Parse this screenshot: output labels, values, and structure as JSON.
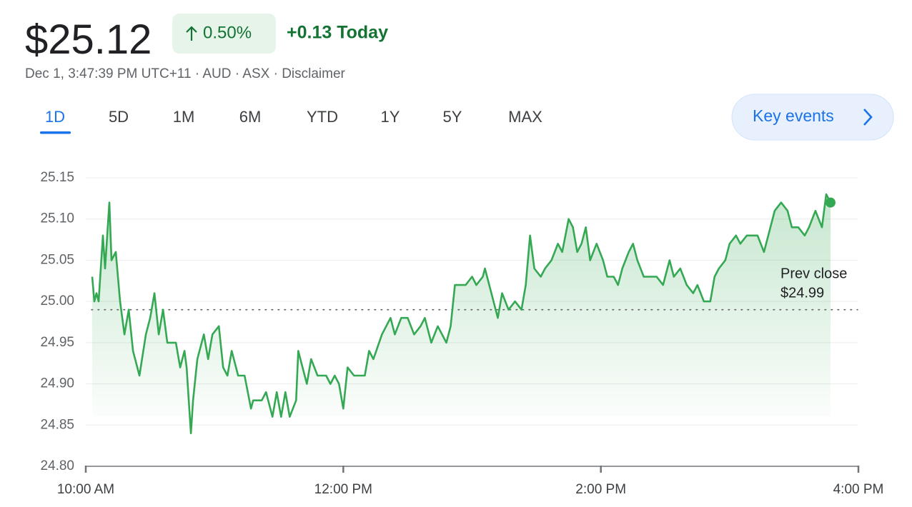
{
  "header": {
    "price": "$25.12",
    "change_percent": "0.50%",
    "change_today": "+0.13 Today",
    "subtitle": "Dec 1, 3:47:39 PM UTC+11 · AUD · ASX · Disclaimer"
  },
  "tabs": [
    "1D",
    "5D",
    "1M",
    "6M",
    "YTD",
    "1Y",
    "5Y",
    "MAX"
  ],
  "key_events": "Key events",
  "chart_data": {
    "type": "line",
    "color": "#34a853",
    "x": [
      603,
      604,
      605,
      606,
      608,
      609,
      611,
      612,
      614,
      616,
      618,
      620,
      622,
      625,
      628,
      630,
      632,
      634,
      636,
      638,
      642,
      644,
      646,
      647,
      649,
      650,
      652,
      655,
      657,
      659,
      662,
      664,
      666,
      668,
      671,
      674,
      677,
      678,
      682,
      684,
      687,
      689,
      691,
      693,
      695,
      698,
      699,
      700,
      703,
      705,
      708,
      712,
      714,
      716,
      718,
      720,
      722,
      725,
      730,
      732,
      734,
      738,
      742,
      744,
      747,
      750,
      753,
      756,
      758,
      761,
      764,
      768,
      770,
      772,
      775,
      777,
      780,
      782,
      785,
      786,
      789,
      792,
      794,
      797,
      800,
      803,
      805,
      807,
      809,
      812,
      814,
      817,
      820,
      822,
      825,
      827,
      829,
      831,
      833,
      835,
      838,
      841,
      843,
      846,
      848,
      850,
      853,
      855,
      857,
      860,
      863,
      866,
      869,
      872,
      874,
      877,
      880,
      883,
      885,
      888,
      891,
      893,
      895,
      898,
      900,
      903,
      905,
      908,
      911,
      913,
      916,
      919,
      921,
      924,
      927,
      929,
      932,
      935,
      937,
      940,
      943,
      945,
      947
    ],
    "values": [
      25.03,
      25.0,
      25.01,
      25.0,
      25.08,
      25.04,
      25.12,
      25.05,
      25.06,
      25.0,
      24.96,
      24.99,
      24.94,
      24.91,
      24.96,
      24.98,
      25.01,
      24.96,
      24.99,
      24.95,
      24.95,
      24.92,
      24.94,
      24.92,
      24.84,
      24.88,
      24.93,
      24.96,
      24.93,
      24.96,
      24.97,
      24.92,
      24.91,
      24.94,
      24.91,
      24.91,
      24.87,
      24.88,
      24.88,
      24.89,
      24.86,
      24.89,
      24.86,
      24.89,
      24.86,
      24.88,
      24.94,
      24.93,
      24.9,
      24.93,
      24.91,
      24.91,
      24.9,
      24.91,
      24.9,
      24.87,
      24.92,
      24.91,
      24.91,
      24.94,
      24.93,
      24.96,
      24.98,
      24.96,
      24.98,
      24.98,
      24.96,
      24.97,
      24.98,
      24.95,
      24.97,
      24.95,
      24.97,
      25.02,
      25.02,
      25.02,
      25.03,
      25.02,
      25.03,
      25.04,
      25.01,
      24.98,
      25.01,
      24.99,
      25.0,
      24.99,
      25.02,
      25.08,
      25.04,
      25.03,
      25.04,
      25.05,
      25.07,
      25.06,
      25.1,
      25.09,
      25.06,
      25.07,
      25.09,
      25.05,
      25.07,
      25.05,
      25.03,
      25.03,
      25.02,
      25.04,
      25.06,
      25.07,
      25.05,
      25.03,
      25.03,
      25.03,
      25.02,
      25.05,
      25.03,
      25.04,
      25.02,
      25.01,
      25.02,
      25.0,
      25.0,
      25.03,
      25.04,
      25.05,
      25.07,
      25.08,
      25.07,
      25.08,
      25.08,
      25.08,
      25.06,
      25.09,
      25.11,
      25.12,
      25.11,
      25.09,
      25.09,
      25.08,
      25.09,
      25.11,
      25.09,
      25.13,
      25.12
    ],
    "xlim": [
      600,
      960
    ],
    "xticks": [
      {
        "value": 600,
        "label": "10:00 AM"
      },
      {
        "value": 720,
        "label": "12:00 PM"
      },
      {
        "value": 840,
        "label": "2:00 PM"
      },
      {
        "value": 960,
        "label": "4:00 PM"
      }
    ],
    "ylim": [
      24.8,
      25.15
    ],
    "yticks": [
      {
        "value": 24.8,
        "label": "24.80"
      },
      24.85,
      {
        "value": 24.9,
        "label": "24.90"
      },
      24.95,
      {
        "value": 25.0,
        "label": "25.00"
      },
      25.05,
      {
        "value": 25.1,
        "label": "25.10"
      },
      25.15
    ],
    "grid": true,
    "annotation": "Prev close",
    "prev_close": {
      "value": 24.99,
      "label": "$24.99"
    }
  }
}
